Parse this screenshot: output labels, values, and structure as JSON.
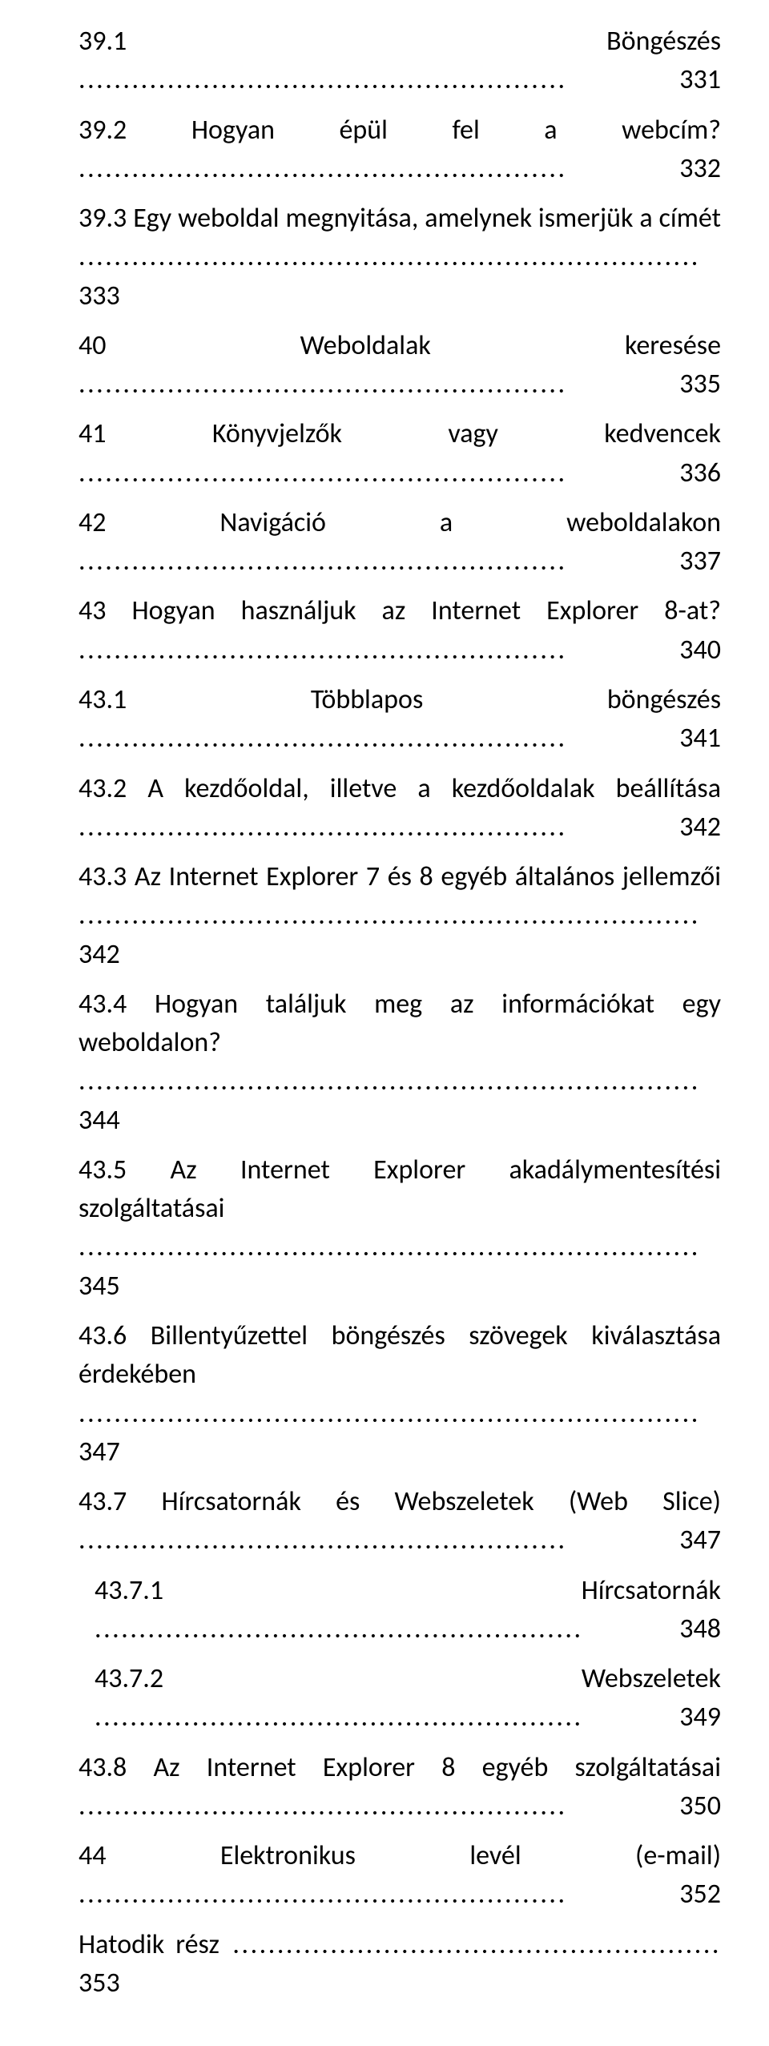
{
  "font": {
    "family": "Calibri",
    "size_pt": 26,
    "color": "#000000"
  },
  "background_color": "#ffffff",
  "toc": [
    {
      "title": "39.1 Böngészés",
      "page": "331",
      "indent": 0
    },
    {
      "title": "39.2 Hogyan épül fel a webcím?",
      "page": "332",
      "indent": 0
    },
    {
      "title": "39.3 Egy weboldal megnyitása, amelynek ismerjük a címét",
      "page": "333",
      "indent": 0,
      "wrap": true
    },
    {
      "title": "40 Weboldalak keresése",
      "page": "335",
      "indent": 0
    },
    {
      "title": "41 Könyvjelzők vagy kedvencek",
      "page": "336",
      "indent": 0
    },
    {
      "title": "42 Navigáció a weboldalakon",
      "page": "337",
      "indent": 0
    },
    {
      "title": "43 Hogyan használjuk az Internet Explorer 8-at?",
      "page": "340",
      "indent": 0
    },
    {
      "title": "43.1 Többlapos böngészés",
      "page": "341",
      "indent": 0
    },
    {
      "title": "43.2 A kezdőoldal, illetve a kezdőoldalak beállítása",
      "page": "342",
      "indent": 0
    },
    {
      "title": "43.3 Az Internet Explorer 7 és 8 egyéb általános jellemzői",
      "page": "342",
      "indent": 0,
      "wrap": true
    },
    {
      "title": "43.4 Hogyan találjuk meg az információkat egy weboldalon?",
      "page": "344",
      "indent": 0,
      "wrap": true
    },
    {
      "title": "43.5 Az Internet Explorer akadálymentesítési szolgáltatásai",
      "page": "345",
      "indent": 0,
      "wrap": true
    },
    {
      "title": "43.6 Billentyűzettel böngészés szövegek kiválasztása érdekében",
      "page": "347",
      "indent": 0,
      "wrap": true
    },
    {
      "title": "43.7 Hírcsatornák és Webszeletek (Web Slice)",
      "page": "347",
      "indent": 0
    },
    {
      "title": "43.7.1 Hírcsatornák",
      "page": "348",
      "indent": 1
    },
    {
      "title": "43.7.2 Webszeletek",
      "page": "349",
      "indent": 1
    },
    {
      "title": "43.8 Az Internet Explorer 8 egyéb szolgáltatásai",
      "page": "350",
      "indent": 0
    },
    {
      "title": "44 Elektronikus levél (e-mail)",
      "page": "352",
      "indent": 0
    },
    {
      "title": "Hatodik rész",
      "page": "353",
      "indent": 0
    }
  ]
}
